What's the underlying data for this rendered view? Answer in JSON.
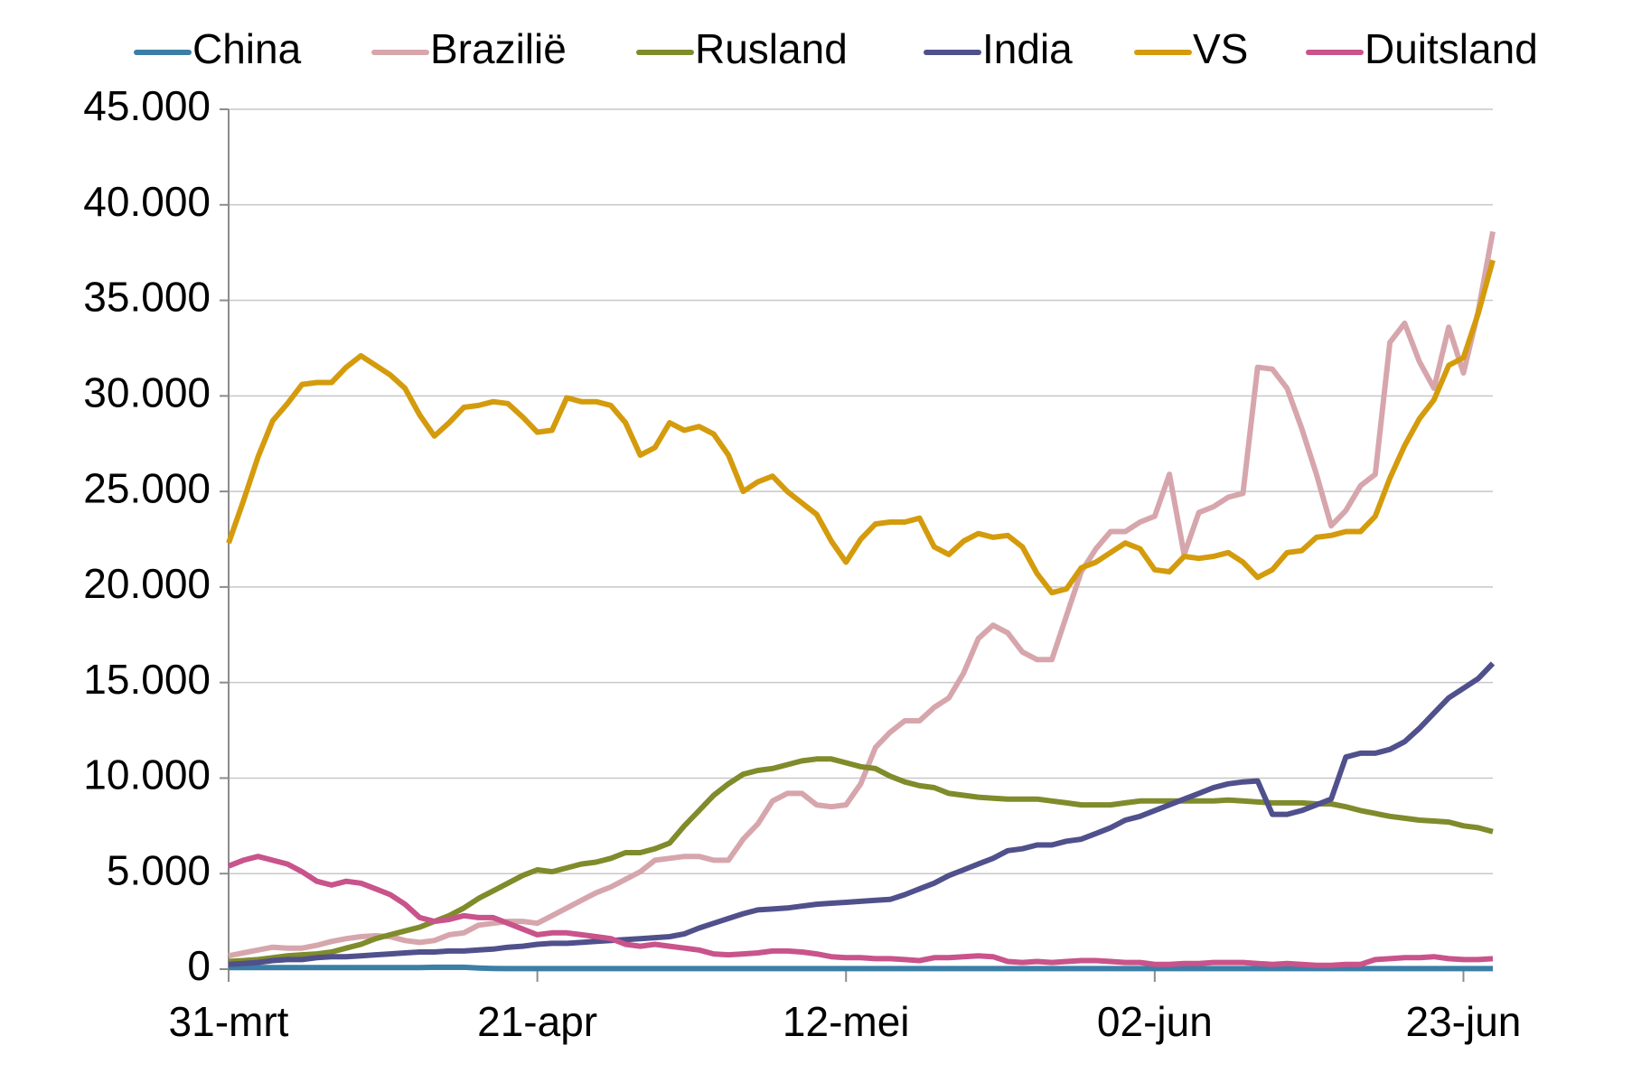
{
  "chart_data": {
    "type": "line",
    "categories": [
      "31-mrt",
      null,
      null,
      null,
      null,
      null,
      null,
      null,
      null,
      null,
      null,
      null,
      null,
      null,
      null,
      null,
      null,
      null,
      null,
      null,
      null,
      "21-apr",
      null,
      null,
      null,
      null,
      null,
      null,
      null,
      null,
      null,
      null,
      null,
      null,
      null,
      null,
      null,
      null,
      null,
      null,
      null,
      null,
      "12-mei",
      null,
      null,
      null,
      null,
      null,
      null,
      null,
      null,
      null,
      null,
      null,
      null,
      null,
      null,
      null,
      null,
      null,
      null,
      null,
      null,
      "02-jun",
      null,
      null,
      null,
      null,
      null,
      null,
      null,
      null,
      null,
      null,
      null,
      null,
      null,
      null,
      null,
      null,
      null,
      null,
      null,
      null,
      "23-jun",
      null,
      null
    ],
    "series": [
      {
        "name": "China",
        "color": "#3b7fa6",
        "values": [
          80,
          80,
          80,
          80,
          80,
          80,
          80,
          80,
          80,
          80,
          80,
          80,
          80,
          80,
          100,
          100,
          100,
          60,
          40,
          30,
          30,
          30,
          30,
          30,
          30,
          30,
          30,
          30,
          30,
          30,
          30,
          30,
          30,
          30,
          30,
          30,
          30,
          30,
          30,
          30,
          30,
          30,
          30,
          30,
          30,
          30,
          30,
          30,
          30,
          30,
          30,
          30,
          30,
          30,
          30,
          30,
          30,
          30,
          30,
          30,
          30,
          30,
          30,
          30,
          30,
          30,
          30,
          30,
          30,
          30,
          30,
          30,
          30,
          30,
          30,
          30,
          30,
          30,
          30,
          30,
          30,
          30,
          30,
          30,
          30,
          30,
          30
        ]
      },
      {
        "name": "Brazilië",
        "color": "#d6a6ac",
        "values": [
          700,
          850,
          1000,
          1150,
          1100,
          1100,
          1250,
          1450,
          1600,
          1700,
          1750,
          1700,
          1500,
          1400,
          1500,
          1800,
          1900,
          2300,
          2400,
          2500,
          2500,
          2400,
          2800,
          3200,
          3600,
          4000,
          4300,
          4700,
          5100,
          5700,
          5800,
          5900,
          5900,
          5700,
          5700,
          6800,
          7600,
          8800,
          9200,
          9200,
          8600,
          8500,
          8600,
          9700,
          11600,
          12400,
          13000,
          13000,
          13700,
          14200,
          15500,
          17300,
          18000,
          17600,
          16600,
          16200,
          16200,
          18500,
          20800,
          22000,
          22900,
          22900,
          23400,
          23700,
          25900,
          21700,
          23900,
          24200,
          24700,
          24900,
          31500,
          31400,
          30400,
          28300,
          25900,
          23200,
          24000,
          25300,
          25900,
          32800,
          33800,
          31800,
          30400,
          33600,
          31200,
          34400,
          38600
        ]
      },
      {
        "name": "Rusland",
        "color": "#808b2b",
        "values": [
          400,
          450,
          500,
          600,
          700,
          750,
          800,
          900,
          1100,
          1300,
          1600,
          1800,
          2000,
          2200,
          2500,
          2800,
          3200,
          3700,
          4100,
          4500,
          4900,
          5200,
          5100,
          5300,
          5500,
          5600,
          5800,
          6100,
          6100,
          6300,
          6600,
          7500,
          8300,
          9100,
          9700,
          10200,
          10400,
          10500,
          10700,
          10900,
          11000,
          11000,
          10800,
          10600,
          10500,
          10100,
          9800,
          9600,
          9500,
          9200,
          9100,
          9000,
          8950,
          8900,
          8900,
          8900,
          8800,
          8700,
          8600,
          8600,
          8600,
          8700,
          8800,
          8800,
          8800,
          8800,
          8800,
          8800,
          8850,
          8800,
          8750,
          8700,
          8700,
          8700,
          8650,
          8650,
          8500,
          8300,
          8150,
          8000,
          7900,
          7800,
          7750,
          7700,
          7500,
          7400,
          7200
        ]
      },
      {
        "name": "India",
        "color": "#50508c",
        "values": [
          250,
          300,
          350,
          450,
          500,
          500,
          600,
          650,
          650,
          700,
          750,
          800,
          850,
          900,
          900,
          950,
          950,
          1000,
          1050,
          1150,
          1200,
          1300,
          1350,
          1350,
          1400,
          1450,
          1500,
          1550,
          1600,
          1650,
          1700,
          1850,
          2150,
          2400,
          2650,
          2900,
          3100,
          3150,
          3200,
          3300,
          3400,
          3450,
          3500,
          3550,
          3600,
          3650,
          3900,
          4200,
          4500,
          4900,
          5200,
          5500,
          5800,
          6200,
          6300,
          6500,
          6500,
          6700,
          6800,
          7100,
          7400,
          7800,
          8000,
          8300,
          8600,
          8900,
          9200,
          9500,
          9700,
          9800,
          9850,
          8100,
          8100,
          8300,
          8600,
          8900,
          11100,
          11300,
          11300,
          11500,
          11900,
          12600,
          13400,
          14200,
          14700,
          15200,
          16000
        ]
      },
      {
        "name": "VS",
        "color": "#d49b0c",
        "values": [
          22300,
          24500,
          26800,
          28700,
          29600,
          30600,
          30700,
          30700,
          31500,
          32100,
          31600,
          31100,
          30400,
          29000,
          27900,
          28600,
          29400,
          29500,
          29700,
          29600,
          28900,
          28100,
          28200,
          29900,
          29700,
          29700,
          29500,
          28600,
          26900,
          27300,
          28600,
          28200,
          28400,
          28000,
          26900,
          25000,
          25500,
          25800,
          25000,
          24400,
          23800,
          22400,
          21300,
          22500,
          23300,
          23400,
          23400,
          23600,
          22100,
          21700,
          22400,
          22800,
          22600,
          22700,
          22100,
          20700,
          19700,
          19900,
          21000,
          21300,
          21800,
          22300,
          22000,
          20900,
          20800,
          21600,
          21500,
          21600,
          21800,
          21300,
          20500,
          20900,
          21800,
          21900,
          22600,
          22700,
          22900,
          22900,
          23700,
          25700,
          27400,
          28800,
          29800,
          31600,
          32000,
          34300,
          37100
        ]
      },
      {
        "name": "Duitsland",
        "color": "#c9538b",
        "values": [
          5400,
          5700,
          5900,
          5700,
          5500,
          5100,
          4600,
          4400,
          4600,
          4500,
          4200,
          3900,
          3400,
          2700,
          2500,
          2600,
          2800,
          2700,
          2700,
          2400,
          2100,
          1800,
          1900,
          1900,
          1800,
          1700,
          1600,
          1300,
          1200,
          1300,
          1200,
          1100,
          1000,
          800,
          750,
          800,
          850,
          950,
          950,
          900,
          800,
          650,
          600,
          600,
          550,
          550,
          500,
          450,
          600,
          600,
          650,
          700,
          650,
          400,
          350,
          400,
          350,
          400,
          450,
          450,
          400,
          350,
          350,
          250,
          250,
          300,
          300,
          350,
          350,
          350,
          300,
          250,
          300,
          250,
          200,
          200,
          250,
          250,
          500,
          550,
          600,
          600,
          650,
          550,
          500,
          500,
          550
        ]
      }
    ],
    "ylim": [
      0,
      45000
    ],
    "yticks": [
      0,
      {
        "value": 5000,
        "label": "5.000"
      },
      {
        "value": 10000,
        "label": "10.000"
      },
      {
        "value": 15000,
        "label": "15.000"
      },
      {
        "value": 20000,
        "label": "20.000"
      },
      {
        "value": 25000,
        "label": "25.000"
      },
      {
        "value": 30000,
        "label": "30.000"
      },
      {
        "value": 35000,
        "label": "35.000"
      },
      {
        "value": 40000,
        "label": "40.000"
      },
      {
        "value": 45000,
        "label": "45.000"
      }
    ],
    "grid": true,
    "legend": "top"
  }
}
